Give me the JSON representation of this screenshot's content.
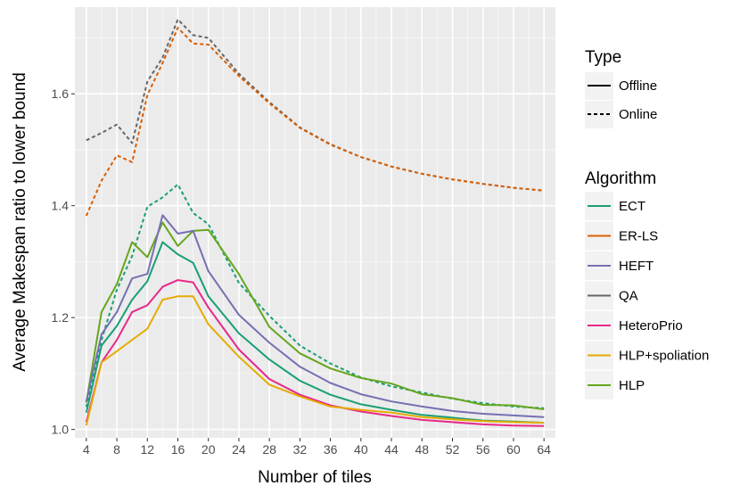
{
  "chart_data": {
    "type": "line",
    "title": "",
    "xlabel": "Number of tiles",
    "ylabel": "Average Makespan ratio to lower bound",
    "xlim": [
      2.5,
      65.5
    ],
    "ylim": [
      0.985,
      1.755
    ],
    "x_ticks": [
      4,
      8,
      12,
      16,
      20,
      24,
      28,
      32,
      36,
      40,
      44,
      48,
      52,
      56,
      60,
      64
    ],
    "y_ticks": [
      1.0,
      1.2,
      1.4,
      1.6
    ],
    "y_tick_labels": [
      "1.0",
      "1.2",
      "1.4",
      "1.6"
    ],
    "grid": true,
    "legend_position": "right",
    "type_legend": {
      "title": "Type",
      "items": [
        {
          "label": "Offline",
          "dash": "solid"
        },
        {
          "label": "Online",
          "dash": "dotted"
        }
      ]
    },
    "algorithm_legend": {
      "title": "Algorithm",
      "items": [
        {
          "label": "ECT",
          "color": "#1b9e77"
        },
        {
          "label": "ER-LS",
          "color": "#d95f02"
        },
        {
          "label": "HEFT",
          "color": "#7570b3"
        },
        {
          "label": "QA",
          "color": "#666666"
        },
        {
          "label": "HeteroPrio",
          "color": "#e7298a"
        },
        {
          "label": "HLP+spoliation",
          "color": "#e6ab02"
        },
        {
          "label": "HLP",
          "color": "#66a61e"
        }
      ]
    },
    "x": [
      4,
      6,
      8,
      10,
      12,
      14,
      16,
      18,
      20,
      24,
      28,
      32,
      36,
      40,
      44,
      48,
      52,
      56,
      60,
      64
    ],
    "series": [
      {
        "name": "QA",
        "type": "Online",
        "color": "#666666",
        "values": [
          1.517,
          1.53,
          1.545,
          1.512,
          1.622,
          1.665,
          1.733,
          1.705,
          1.7,
          1.636,
          1.585,
          1.54,
          1.51,
          1.487,
          1.47,
          1.457,
          1.447,
          1.439,
          1.432,
          1.427
        ]
      },
      {
        "name": "ER-LS",
        "type": "Online",
        "color": "#d95f02",
        "values": [
          1.382,
          1.445,
          1.49,
          1.478,
          1.598,
          1.655,
          1.718,
          1.69,
          1.688,
          1.632,
          1.583,
          1.539,
          1.509,
          1.487,
          1.47,
          1.457,
          1.447,
          1.439,
          1.432,
          1.427
        ]
      },
      {
        "name": "ECT",
        "type": "Online",
        "color": "#1b9e77",
        "values": [
          1.04,
          1.16,
          1.25,
          1.31,
          1.398,
          1.415,
          1.438,
          1.387,
          1.367,
          1.262,
          1.203,
          1.15,
          1.118,
          1.093,
          1.077,
          1.066,
          1.055,
          1.047,
          1.041,
          1.038
        ]
      },
      {
        "name": "HLP",
        "type": "Offline",
        "color": "#66a61e",
        "values": [
          1.048,
          1.21,
          1.26,
          1.335,
          1.308,
          1.37,
          1.328,
          1.355,
          1.357,
          1.278,
          1.183,
          1.136,
          1.109,
          1.092,
          1.082,
          1.063,
          1.056,
          1.044,
          1.043,
          1.036
        ]
      },
      {
        "name": "HEFT",
        "type": "Offline",
        "color": "#7570b3",
        "values": [
          1.05,
          1.17,
          1.21,
          1.27,
          1.278,
          1.383,
          1.35,
          1.355,
          1.283,
          1.205,
          1.155,
          1.112,
          1.083,
          1.063,
          1.05,
          1.041,
          1.033,
          1.028,
          1.025,
          1.022
        ]
      },
      {
        "name": "ECT",
        "type": "Offline",
        "color": "#1b9e77",
        "values": [
          1.03,
          1.15,
          1.185,
          1.232,
          1.265,
          1.335,
          1.313,
          1.298,
          1.238,
          1.172,
          1.125,
          1.087,
          1.062,
          1.045,
          1.035,
          1.026,
          1.021,
          1.016,
          1.014,
          1.012
        ]
      },
      {
        "name": "HeteroPrio",
        "type": "Offline",
        "color": "#e7298a",
        "values": [
          1.013,
          1.12,
          1.16,
          1.21,
          1.222,
          1.255,
          1.267,
          1.263,
          1.218,
          1.143,
          1.09,
          1.062,
          1.043,
          1.032,
          1.024,
          1.017,
          1.013,
          1.009,
          1.007,
          1.006
        ]
      },
      {
        "name": "HLP+spoliation",
        "type": "Offline",
        "color": "#e6ab02",
        "values": [
          1.007,
          1.12,
          1.14,
          1.16,
          1.18,
          1.232,
          1.238,
          1.238,
          1.188,
          1.13,
          1.08,
          1.059,
          1.041,
          1.035,
          1.03,
          1.022,
          1.018,
          1.015,
          1.013,
          1.012
        ]
      }
    ]
  }
}
